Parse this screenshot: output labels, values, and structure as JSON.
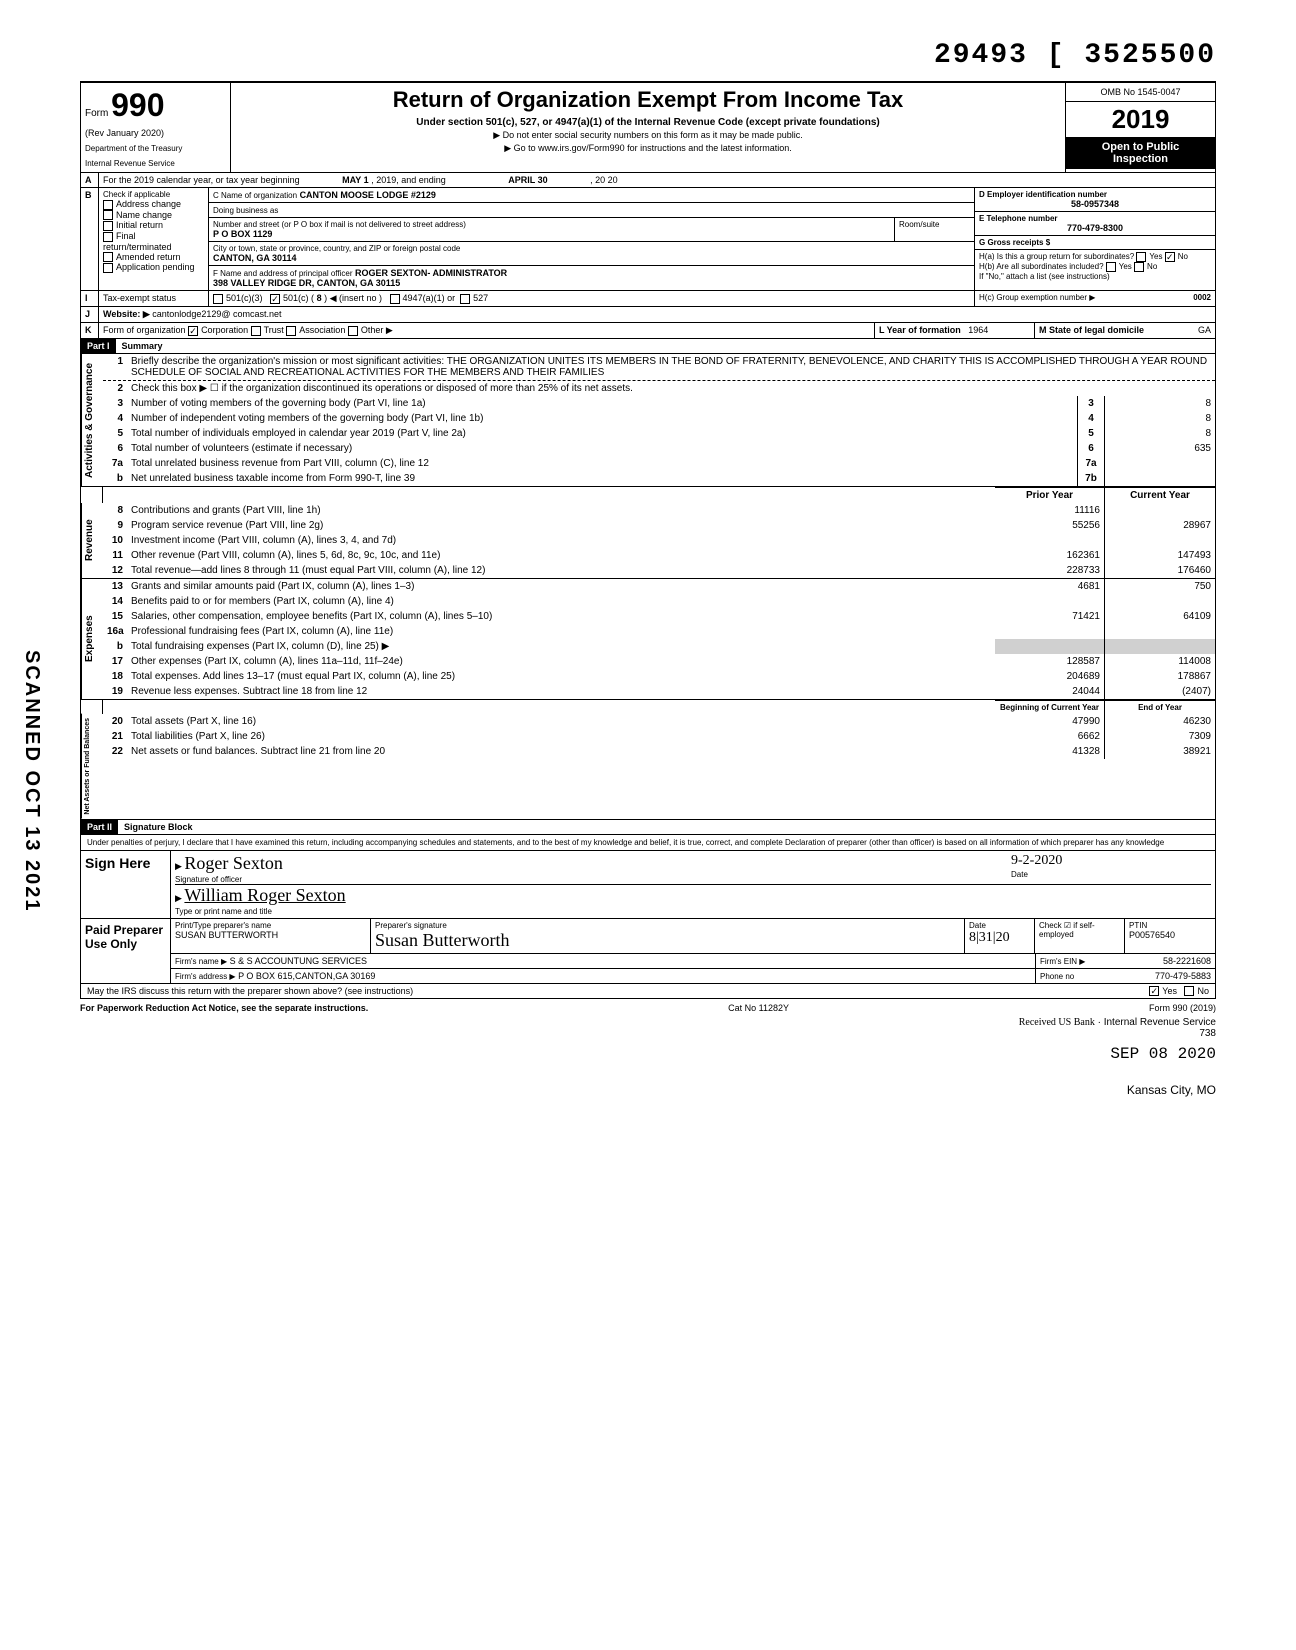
{
  "dln": "29493 [ 3525500",
  "form": {
    "word": "Form",
    "number": "990",
    "rev": "(Rev January 2020)",
    "dept1": "Department of the Treasury",
    "dept2": "Internal Revenue Service",
    "title": "Return of Organization Exempt From Income Tax",
    "subtitle": "Under section 501(c), 527, or 4947(a)(1) of the Internal Revenue Code (except private foundations)",
    "instr1": "▶ Do not enter social security numbers on this form as it may be made public.",
    "instr2": "▶ Go to www.irs.gov/Form990 for instructions and the latest information.",
    "omb": "OMB No 1545-0047",
    "year": "2019",
    "open1": "Open to Public",
    "open2": "Inspection"
  },
  "lineA": {
    "text": "For the 2019 calendar year, or tax year beginning",
    "begin": "MAY 1",
    "mid": ", 2019, and ending",
    "end": "APRIL 30",
    "endyr": ", 20 20"
  },
  "lineB": {
    "label": "Check if applicable",
    "opts": [
      "Address change",
      "Name change",
      "Initial return",
      "Final return/terminated",
      "Amended return",
      "Application pending"
    ]
  },
  "org": {
    "c_label": "C Name of organization",
    "c_name": "CANTON MOOSE LODGE #2129",
    "dba_label": "Doing business as",
    "addr_label": "Number and street (or P O box if mail is not delivered to street address)",
    "addr": "P O BOX 1129",
    "room_label": "Room/suite",
    "city_label": "City or town, state or province, country, and ZIP or foreign postal code",
    "city": "CANTON, GA 30114",
    "f_label": "F Name and address of principal officer",
    "f_name": "ROGER SEXTON- ADMINISTRATOR",
    "f_addr": "398 VALLEY RIDGE DR, CANTON, GA 30115",
    "d_label": "D Employer identification number",
    "d_ein": "58-0957348",
    "e_label": "E Telephone number",
    "e_phone": "770-479-8300",
    "g_label": "G Gross receipts $",
    "ha_label": "H(a) Is this a group return for subordinates?",
    "ha_yes": "Yes",
    "ha_no": "No",
    "hb_label": "H(b) Are all subordinates included?",
    "hb_yes": "Yes",
    "hb_no": "No",
    "hb_note": "If \"No,\" attach a list (see instructions)",
    "hc_label": "H(c) Group exemption number ▶",
    "hc_val": "0002"
  },
  "lineI": {
    "label": "Tax-exempt status",
    "o1": "501(c)(3)",
    "o2": "501(c) (",
    "o2num": "8",
    "o2ins": ") ◀ (insert no )",
    "o3": "4947(a)(1) or",
    "o4": "527"
  },
  "lineJ": {
    "label": "Website: ▶",
    "val": "cantonlodge2129@ comcast.net"
  },
  "lineK": {
    "label": "Form of organization",
    "opts": [
      "Corporation",
      "Trust",
      "Association",
      "Other ▶"
    ],
    "l_label": "L Year of formation",
    "l_val": "1964",
    "m_label": "M State of legal domicile",
    "m_val": "GA"
  },
  "part1": {
    "hdr": "Part I",
    "title": "Summary"
  },
  "governance": {
    "label": "Activities & Governance",
    "l1_num": "1",
    "l1": "Briefly describe the organization's mission or most significant activities:",
    "l1_text": "THE ORGANIZATION UNITES ITS MEMBERS IN THE BOND OF FRATERNITY, BENEVOLENCE, AND CHARITY  THIS IS ACCOMPLISHED THROUGH A YEAR ROUND SCHEDULE OF SOCIAL AND RECREATIONAL ACTIVITIES FOR THE MEMBERS AND THEIR FAMILIES",
    "l2_num": "2",
    "l2": "Check this box ▶ ☐ if the organization discontinued its operations or disposed of more than 25% of its net assets.",
    "l3_num": "3",
    "l3": "Number of voting members of the governing body (Part VI, line 1a)",
    "l3_box": "3",
    "l3_val": "8",
    "l4_num": "4",
    "l4": "Number of independent voting members of the governing body (Part VI, line 1b)",
    "l4_box": "4",
    "l4_val": "8",
    "l5_num": "5",
    "l5": "Total number of individuals employed in calendar year 2019 (Part V, line 2a)",
    "l5_box": "5",
    "l5_val": "8",
    "l6_num": "6",
    "l6": "Total number of volunteers (estimate if necessary)",
    "l6_box": "6",
    "l6_val": "635",
    "l7a_num": "7a",
    "l7a": "Total unrelated business revenue from Part VIII, column (C), line 12",
    "l7a_box": "7a",
    "l7a_val": "",
    "l7b_num": "b",
    "l7b": "Net unrelated business taxable income from Form 990-T, line 39",
    "l7b_box": "7b",
    "l7b_val": ""
  },
  "cols": {
    "prior": "Prior Year",
    "current": "Current Year",
    "boc": "Beginning of Current Year",
    "eoy": "End of Year"
  },
  "revenue": {
    "label": "Revenue",
    "rows": [
      {
        "n": "8",
        "d": "Contributions and grants (Part VIII, line 1h)",
        "p": "11116",
        "c": ""
      },
      {
        "n": "9",
        "d": "Program service revenue (Part VIII, line 2g)",
        "p": "55256",
        "c": "28967"
      },
      {
        "n": "10",
        "d": "Investment income (Part VIII, column (A), lines 3, 4, and 7d)",
        "p": "",
        "c": ""
      },
      {
        "n": "11",
        "d": "Other revenue (Part VIII, column (A), lines 5, 6d, 8c, 9c, 10c, and 11e)",
        "p": "162361",
        "c": "147493"
      },
      {
        "n": "12",
        "d": "Total revenue—add lines 8 through 11 (must equal Part VIII, column (A), line 12)",
        "p": "228733",
        "c": "176460"
      }
    ]
  },
  "expenses": {
    "label": "Expenses",
    "rows": [
      {
        "n": "13",
        "d": "Grants and similar amounts paid (Part IX, column (A), lines 1–3)",
        "p": "4681",
        "c": "750"
      },
      {
        "n": "14",
        "d": "Benefits paid to or for members (Part IX, column (A), line 4)",
        "p": "",
        "c": ""
      },
      {
        "n": "15",
        "d": "Salaries, other compensation, employee benefits (Part IX, column (A), lines 5–10)",
        "p": "71421",
        "c": "64109"
      },
      {
        "n": "16a",
        "d": "Professional fundraising fees (Part IX, column (A), line 11e)",
        "p": "",
        "c": ""
      },
      {
        "n": "b",
        "d": "Total fundraising expenses (Part IX, column (D), line 25) ▶",
        "p": "",
        "c": "",
        "shade": true
      },
      {
        "n": "17",
        "d": "Other expenses (Part IX, column (A), lines 11a–11d, 11f–24e)",
        "p": "128587",
        "c": "114008"
      },
      {
        "n": "18",
        "d": "Total expenses. Add lines 13–17 (must equal Part IX, column (A), line 25)",
        "p": "204689",
        "c": "178867"
      },
      {
        "n": "19",
        "d": "Revenue less expenses. Subtract line 18 from line 12",
        "p": "24044",
        "c": "(2407)"
      }
    ]
  },
  "netassets": {
    "label": "Net Assets or Fund Balances",
    "rows": [
      {
        "n": "20",
        "d": "Total assets (Part X, line 16)",
        "p": "47990",
        "c": "46230"
      },
      {
        "n": "21",
        "d": "Total liabilities (Part X, line 26)",
        "p": "6662",
        "c": "7309"
      },
      {
        "n": "22",
        "d": "Net assets or fund balances. Subtract line 21 from line 20",
        "p": "41328",
        "c": "38921"
      }
    ]
  },
  "part2": {
    "hdr": "Part II",
    "title": "Signature Block"
  },
  "perjury": "Under penalties of perjury, I declare that I have examined this return, including accompanying schedules and statements, and to the best of my knowledge and belief, it is true, correct, and complete  Declaration of preparer (other than officer) is based on all information of which preparer has any knowledge",
  "sign": {
    "label": "Sign Here",
    "sig_label": "Signature of officer",
    "date_label": "Date",
    "date_val": "9-2-2020",
    "name_label": "Type or print name and title",
    "name_val": "William Roger Sexton"
  },
  "paid": {
    "label": "Paid Preparer Use Only",
    "prep_name_label": "Print/Type preparer's name",
    "prep_name": "SUSAN BUTTERWORTH",
    "prep_sig_label": "Preparer's signature",
    "prep_sig": "Susan Butterworth",
    "prep_date_label": "Date",
    "prep_date": "8|31|20",
    "check_label": "Check ☑ if self-employed",
    "ptin_label": "PTIN",
    "ptin": "P00576540",
    "firm_name_label": "Firm's name ▶",
    "firm_name": "S & S ACCOUNTUNG SERVICES",
    "firm_ein_label": "Firm's EIN ▶",
    "firm_ein": "58-2221608",
    "firm_addr_label": "Firm's address ▶",
    "firm_addr": "P O BOX 615,CANTON,GA 30169",
    "firm_phone_label": "Phone no",
    "firm_phone": "770-479-5883"
  },
  "discuss": {
    "q": "May the IRS discuss this return with the preparer shown above? (see instructions)",
    "yes": "Yes",
    "no": "No"
  },
  "footer": {
    "pra": "For Paperwork Reduction Act Notice, see the separate instructions.",
    "cat": "Cat No 11282Y",
    "form": "Form 990 (2019)"
  },
  "stamps": {
    "received": "Received US Bank",
    "irs": "Internal Revenue Service",
    "num": "738",
    "date": "SEP 08 2020",
    "city": "Kansas City, MO"
  },
  "scanned": "SCANNED OCT 13 2021"
}
